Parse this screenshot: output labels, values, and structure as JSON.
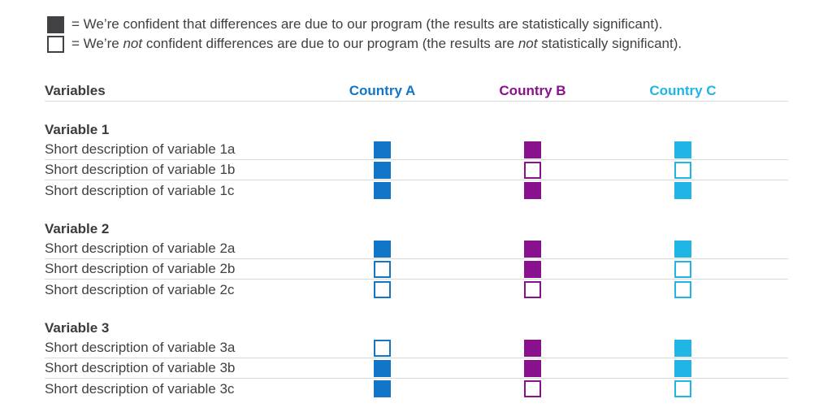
{
  "colors": {
    "country_a": "#1276C8",
    "country_b": "#8A118E",
    "country_c": "#1FB6E6",
    "legend_dark": "#414042",
    "text": "#414042",
    "divider": "#D9D9D9"
  },
  "chart_data": {
    "type": "table",
    "title": "",
    "legend": [
      {
        "marker": "filled-square",
        "meaning_parts": {
          "p0": "= We’re confident that differences are due to our program (the results are statistically significant)."
        }
      },
      {
        "marker": "empty-square",
        "meaning_parts": {
          "p0": "= We’re ",
          "i1": "not",
          "p2": " confident differences are due to our program (the results are ",
          "i3": "not",
          "p4": " statistically significant)."
        }
      }
    ],
    "header": {
      "row_label": "Variables",
      "columns": [
        "Country A",
        "Country B",
        "Country C"
      ]
    },
    "groups": [
      {
        "title": "Variable 1",
        "rows": [
          {
            "label": "Short description of variable 1a",
            "cells": [
              "filled",
              "filled",
              "filled"
            ]
          },
          {
            "label": "Short description of variable 1b",
            "cells": [
              "filled",
              "empty",
              "empty"
            ]
          },
          {
            "label": "Short description of variable 1c",
            "cells": [
              "filled",
              "filled",
              "filled"
            ]
          }
        ]
      },
      {
        "title": "Variable 2",
        "rows": [
          {
            "label": "Short description of variable 2a",
            "cells": [
              "filled",
              "filled",
              "filled"
            ]
          },
          {
            "label": "Short description of variable 2b",
            "cells": [
              "empty",
              "filled",
              "empty"
            ]
          },
          {
            "label": "Short description of variable 2c",
            "cells": [
              "empty",
              "empty",
              "empty"
            ]
          }
        ]
      },
      {
        "title": "Variable 3",
        "rows": [
          {
            "label": "Short description of variable 3a",
            "cells": [
              "empty",
              "filled",
              "filled"
            ]
          },
          {
            "label": "Short description of variable 3b",
            "cells": [
              "filled",
              "filled",
              "filled"
            ]
          },
          {
            "label": "Short description of variable 3c",
            "cells": [
              "filled",
              "empty",
              "empty"
            ]
          }
        ]
      }
    ]
  }
}
